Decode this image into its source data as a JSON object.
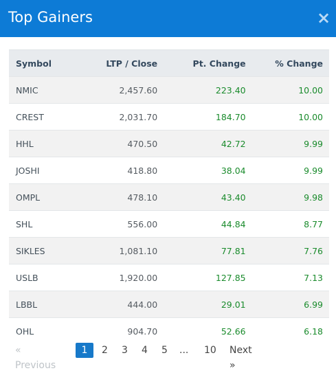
{
  "modal": {
    "title": "Top Gainers",
    "close_label": "×"
  },
  "table": {
    "headers": {
      "symbol": "Symbol",
      "ltp": "LTP / Close",
      "pt_change": "Pt. Change",
      "pct_change": "% Change"
    },
    "rows": [
      {
        "symbol": "NMIC",
        "ltp": "2,457.60",
        "pt_change": "223.40",
        "pct_change": "10.00"
      },
      {
        "symbol": "CREST",
        "ltp": "2,031.70",
        "pt_change": "184.70",
        "pct_change": "10.00"
      },
      {
        "symbol": "HHL",
        "ltp": "470.50",
        "pt_change": "42.72",
        "pct_change": "9.99"
      },
      {
        "symbol": "JOSHI",
        "ltp": "418.80",
        "pt_change": "38.04",
        "pct_change": "9.99"
      },
      {
        "symbol": "OMPL",
        "ltp": "478.10",
        "pt_change": "43.40",
        "pct_change": "9.98"
      },
      {
        "symbol": "SHL",
        "ltp": "556.00",
        "pt_change": "44.84",
        "pct_change": "8.77"
      },
      {
        "symbol": "SIKLES",
        "ltp": "1,081.10",
        "pt_change": "77.81",
        "pct_change": "7.76"
      },
      {
        "symbol": "USLB",
        "ltp": "1,920.00",
        "pt_change": "127.85",
        "pct_change": "7.13"
      },
      {
        "symbol": "LBBL",
        "ltp": "444.00",
        "pt_change": "29.01",
        "pct_change": "6.99"
      },
      {
        "symbol": "OHL",
        "ltp": "904.70",
        "pt_change": "52.66",
        "pct_change": "6.18"
      }
    ]
  },
  "pagination": {
    "previous": "« Previous",
    "pages": [
      "1",
      "2",
      "3",
      "4",
      "5"
    ],
    "ellipsis": "...",
    "last": "10",
    "next": "Next »",
    "active_page": "1"
  },
  "colors": {
    "header_bg": "#0d7bd6",
    "positive": "#1a8b2c",
    "active_page": "#1779c9"
  }
}
